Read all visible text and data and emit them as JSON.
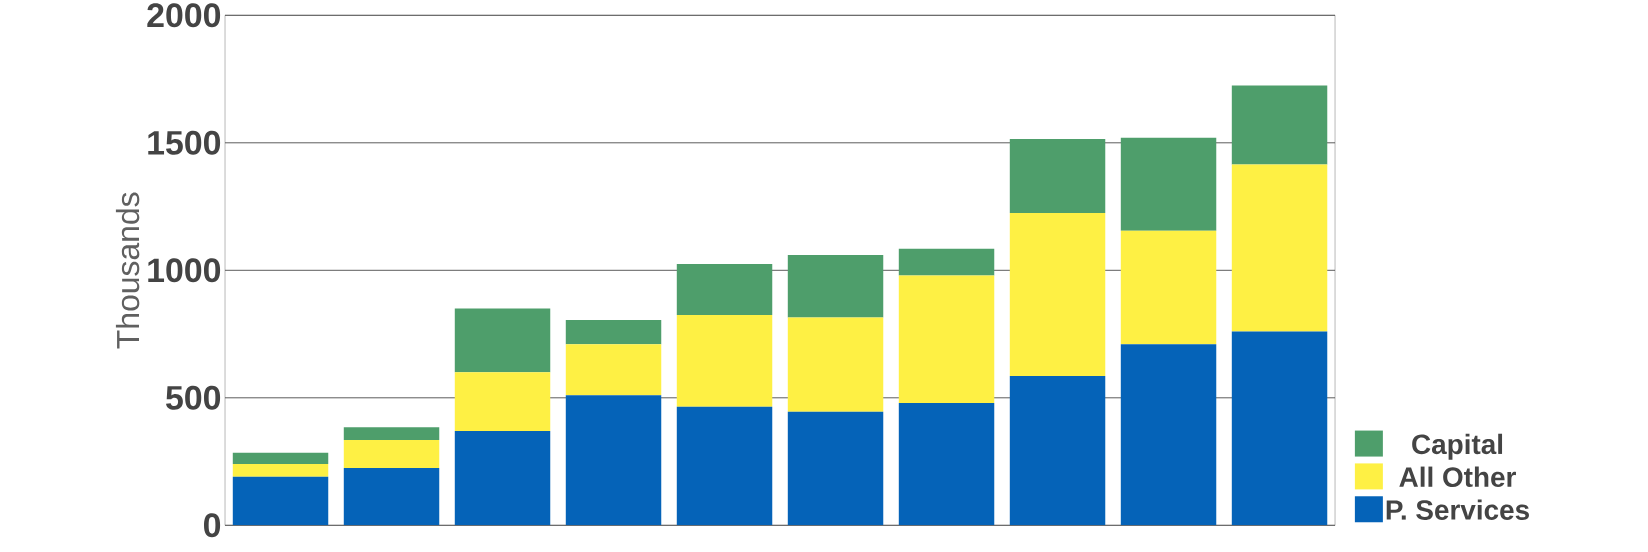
{
  "chart_data": {
    "type": "bar",
    "stacked": true,
    "ylabel": "Thousands",
    "categories": [
      null,
      null,
      null,
      null,
      null,
      null,
      null,
      null,
      null,
      null
    ],
    "series": [
      {
        "name": "P. Services",
        "color": "#0563b8",
        "values": [
          190,
          225,
          370,
          510,
          465,
          445,
          480,
          585,
          710,
          760
        ]
      },
      {
        "name": "All Other",
        "color": "#fef044",
        "values": [
          50,
          110,
          230,
          200,
          360,
          370,
          500,
          640,
          445,
          655
        ]
      },
      {
        "name": "Capital",
        "color": "#4e9e6b",
        "values": [
          45,
          50,
          250,
          95,
          200,
          245,
          105,
          290,
          365,
          310
        ]
      }
    ],
    "ylim": [
      0,
      2000
    ],
    "yticks": [
      0,
      500,
      1000,
      1500,
      2000
    ],
    "grid": "y",
    "legend": "right",
    "tick_labels": "y"
  }
}
